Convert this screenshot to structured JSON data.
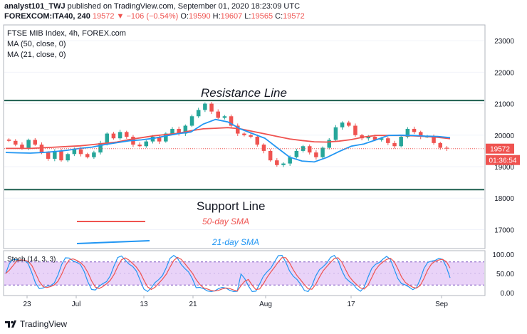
{
  "header": {
    "publisher": "analyst101_TWJ",
    "published_text": "published on TradingView.com, September 01, 2020 18:23:09 UTC",
    "symbol": "FOREXCOM:ITA40, 240",
    "last": "19572",
    "change": "−106 (−0.54%)",
    "o_label": "O:",
    "o_val": "19590",
    "h_label": "H:",
    "h_val": "19607",
    "l_label": "L:",
    "l_val": "19565",
    "c_label": "C:",
    "c_val": "19572"
  },
  "legend": {
    "title": "FTSE MIB Index, 4h, FOREX.com",
    "ma50": "MA (50, close, 0)",
    "ma21": "MA (21, close, 0)"
  },
  "annotations": {
    "resistance": "Resistance Line",
    "support": "Support Line",
    "sma50": "50-day SMA",
    "sma21": "21-day SMA"
  },
  "price_axis": {
    "ticks": [
      "23000",
      "22000",
      "21000",
      "20000",
      "19000",
      "18000",
      "17000"
    ],
    "last_price_badge": "19572",
    "countdown_badge": "01:36:54"
  },
  "stoch": {
    "label": "Stoch (14, 3, 3)",
    "ticks": [
      "100.00",
      "50.00",
      "0.00"
    ],
    "upper_band": 80,
    "lower_band": 20
  },
  "time_axis": {
    "labels": [
      "23",
      "Jul",
      "13",
      "21",
      "Aug",
      "17",
      "Sep"
    ]
  },
  "footer": {
    "brand": "TradingView"
  },
  "colors": {
    "up": "#26a69a",
    "down": "#ef5350",
    "ma50": "#ef5350",
    "ma21": "#2196f3",
    "trend": "#1e5f4f",
    "stoch_band": "#e1c4f5",
    "stoch_k": "#2196f3",
    "stoch_d": "#ef5350"
  },
  "chart_data": {
    "type": "candlestick",
    "title": "FTSE MIB Index, 4h, FOREX.com",
    "ylim": [
      16400,
      23500
    ],
    "resistance_level": 21100,
    "support_level": 18270,
    "close": [
      19820,
      19700,
      19600,
      19850,
      19700,
      19450,
      19250,
      19500,
      19200,
      19400,
      19550,
      19400,
      19300,
      19450,
      19750,
      20050,
      19900,
      20100,
      19950,
      19700,
      19650,
      19800,
      19950,
      19800,
      20050,
      20200,
      20050,
      20300,
      20600,
      20800,
      21000,
      20750,
      20550,
      20600,
      20300,
      20050,
      20000,
      19950,
      19700,
      19500,
      19200,
      19050,
      19100,
      19300,
      19500,
      19650,
      19450,
      19300,
      19600,
      19850,
      20250,
      20400,
      20300,
      20000,
      19900,
      19950,
      19850,
      19900,
      19750,
      19650,
      19950,
      20200,
      20100,
      19950,
      19950,
      19750,
      19600,
      19572
    ],
    "ma50": [
      19580,
      19580,
      19580,
      19600,
      19620,
      19640,
      19660,
      19700,
      19740,
      19780,
      19860,
      19920,
      19980,
      20020,
      20060,
      20140,
      20200,
      20220,
      20240,
      20200,
      20120,
      20040,
      19960,
      19880,
      19830,
      19790,
      19780,
      19810,
      19860,
      19940,
      19990,
      19990,
      19990,
      19980,
      19960,
      19930,
      19890
    ],
    "ma21": [
      19450,
      19440,
      19430,
      19450,
      19480,
      19520,
      19580,
      19620,
      19700,
      19760,
      19820,
      19850,
      19900,
      19980,
      20050,
      20100,
      20350,
      20500,
      20420,
      20200,
      20050,
      19900,
      19600,
      19300,
      19180,
      19150,
      19290,
      19480,
      19650,
      19720,
      19850,
      19990,
      20000,
      19990,
      19970,
      19960,
      19920
    ]
  }
}
